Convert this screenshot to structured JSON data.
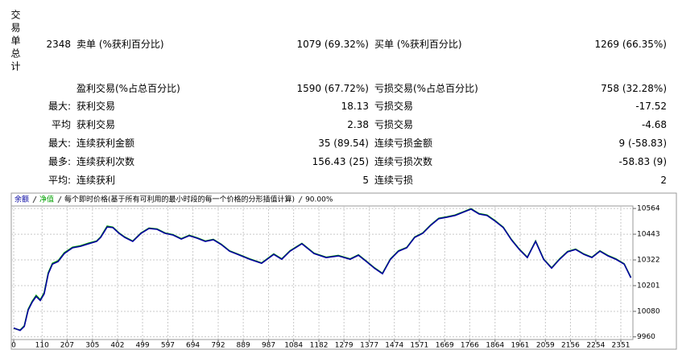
{
  "stats": {
    "side_label": "交易单总计",
    "rows": [
      [
        "2348",
        "卖单 (%获利百分比)",
        "1079 (69.32%)",
        "买单 (%获利百分比)",
        "1269 (66.35%)"
      ],
      [
        null,
        "盈利交易(%占总百分比)",
        "1590 (67.72%)",
        "亏损交易(%占总百分比)",
        "758 (32.28%)"
      ],
      [
        "最大:",
        "获利交易",
        "18.13",
        "亏损交易",
        "-17.52"
      ],
      [
        "平均",
        "获利交易",
        "2.38",
        "亏损交易",
        "-4.68"
      ],
      [
        "最大:",
        "连续获利金额",
        "35 (89.54)",
        "连续亏损金额",
        "9 (-58.83)"
      ],
      [
        "最多:",
        "连续获利次数",
        "156.43 (25)",
        "连续亏损次数",
        "-58.83 (9)"
      ],
      [
        "平均:",
        "连续获利",
        "5",
        "连续亏损",
        "2"
      ]
    ]
  },
  "chart_data": {
    "type": "line",
    "subtitle": "每个即时价格(基于所有可利用的最小时段的每一个价格的分形插值计算)",
    "quality": "90.00%",
    "x": [
      0,
      25,
      41,
      56,
      72,
      87,
      103,
      118,
      134,
      150,
      172,
      196,
      228,
      259,
      290,
      321,
      337,
      362,
      384,
      408,
      430,
      461,
      493,
      524,
      555,
      586,
      617,
      649,
      680,
      711,
      742,
      773,
      804,
      836,
      867,
      914,
      960,
      1007,
      1038,
      1070,
      1116,
      1163,
      1210,
      1257,
      1303,
      1335,
      1366,
      1397,
      1428,
      1459,
      1490,
      1522,
      1553,
      1584,
      1615,
      1646,
      1678,
      1709,
      1740,
      1771,
      1802,
      1833,
      1865,
      1896,
      1927,
      1958,
      1989,
      2021,
      2052,
      2083,
      2114,
      2145,
      2176,
      2208,
      2239,
      2270,
      2301,
      2332,
      2364,
      2390
    ],
    "series": [
      {
        "name": "净值",
        "color": "#00a000",
        "values": [
          10000,
          9992,
          10012,
          10090,
          10128,
          10155,
          10135,
          10168,
          10262,
          10306,
          10318,
          10356,
          10382,
          10389,
          10401,
          10411,
          10431,
          10481,
          10476,
          10449,
          10430,
          10411,
          10449,
          10472,
          10468,
          10449,
          10441,
          10422,
          10438,
          10426,
          10411,
          10419,
          10396,
          10365,
          10350,
          10327,
          10308,
          10350,
          10327,
          10365,
          10400,
          10354,
          10335,
          10343,
          10327,
          10346,
          10316,
          10285,
          10259,
          10327,
          10365,
          10381,
          10430,
          10449,
          10487,
          10518,
          10525,
          10533,
          10548,
          10563,
          10540,
          10533,
          10506,
          10476,
          10419,
          10373,
          10335,
          10411,
          10327,
          10285,
          10327,
          10362,
          10373,
          10350,
          10335,
          10365,
          10343,
          10327,
          10304,
          10240
        ]
      },
      {
        "name": "余额",
        "color": "#0000a0",
        "values": [
          10002,
          9990,
          10009,
          10086,
          10124,
          10150,
          10131,
          10162,
          10257,
          10302,
          10314,
          10352,
          10379,
          10386,
          10398,
          10409,
          10428,
          10477,
          10474,
          10447,
          10428,
          10409,
          10447,
          10470,
          10466,
          10447,
          10439,
          10420,
          10436,
          10424,
          10409,
          10417,
          10394,
          10363,
          10348,
          10325,
          10306,
          10348,
          10325,
          10363,
          10398,
          10352,
          10333,
          10341,
          10325,
          10344,
          10314,
          10283,
          10257,
          10325,
          10363,
          10379,
          10428,
          10447,
          10485,
          10516,
          10523,
          10531,
          10546,
          10561,
          10538,
          10531,
          10504,
          10474,
          10417,
          10371,
          10333,
          10409,
          10325,
          10283,
          10325,
          10360,
          10371,
          10348,
          10333,
          10363,
          10341,
          10325,
          10302,
          10238
        ]
      }
    ],
    "xlim": [
      0,
      2400
    ],
    "xticks": [
      0,
      110,
      207,
      305,
      402,
      499,
      597,
      694,
      792,
      889,
      987,
      1084,
      1182,
      1279,
      1377,
      1474,
      1571,
      1669,
      1766,
      1864,
      1961,
      2059,
      2156,
      2254,
      2351
    ],
    "ylim": [
      9955,
      10625
    ],
    "yticks": [
      9960,
      10080,
      10201,
      10322,
      10443,
      10564
    ],
    "grid": true
  }
}
